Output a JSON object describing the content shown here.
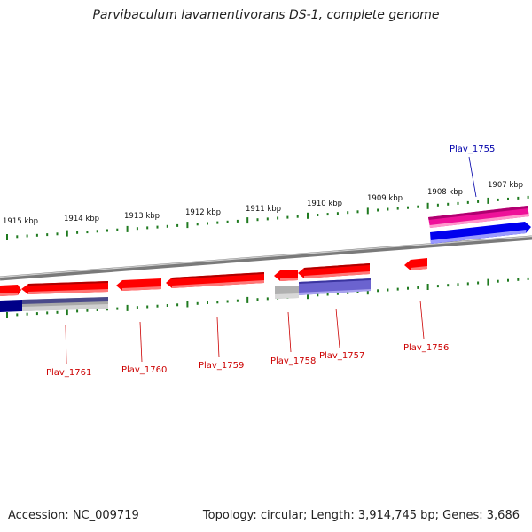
{
  "title": "Parvibaculum lavamentivorans DS-1, complete genome",
  "footer": {
    "accession": "Accession: NC_009719",
    "summary": "Topology: circular; Length: 3,914,745 bp; Genes: 3,686"
  },
  "colors": {
    "backbone": "#888888",
    "tick": "#1f7a1f",
    "label_red": "#cc0000",
    "label_blue": "#0000aa",
    "cds_red": "#ff0000",
    "cds_pink": "#ee1199",
    "cds_blue": "#0000ee",
    "cds_navy": "#000088",
    "cds_purple": "#6666cc",
    "cds_grey": "#aaaaaa"
  },
  "scale_labels": [
    "1915 kbp",
    "1914 kbp",
    "1913 kbp",
    "1912 kbp",
    "1911 kbp",
    "1910 kbp",
    "1909 kbp",
    "1908 kbp",
    "1907 kbp"
  ],
  "genes": [
    {
      "name": "Plav_1761",
      "color": "red"
    },
    {
      "name": "Plav_1760",
      "color": "red"
    },
    {
      "name": "Plav_1759",
      "color": "red"
    },
    {
      "name": "Plav_1758",
      "color": "red"
    },
    {
      "name": "Plav_1757",
      "color": "red"
    },
    {
      "name": "Plav_1756",
      "color": "red"
    },
    {
      "name": "Plav_1755",
      "color": "blue"
    }
  ]
}
